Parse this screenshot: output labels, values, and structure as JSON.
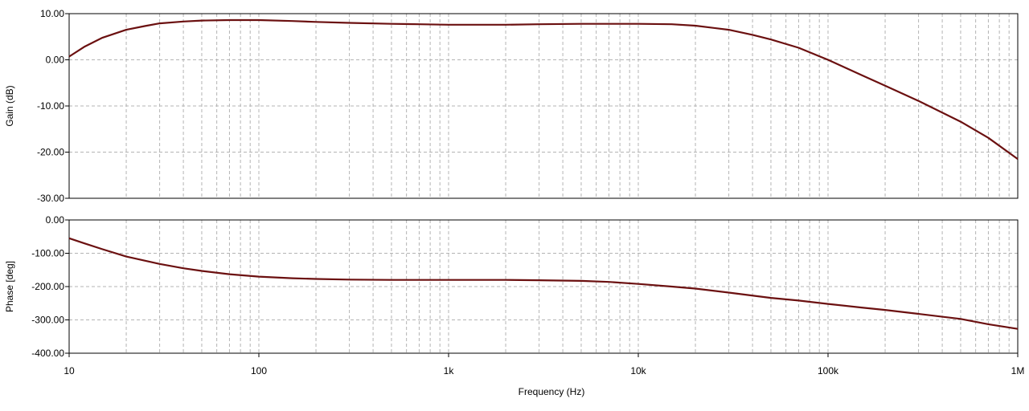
{
  "chart_data": [
    {
      "type": "line",
      "name": "gain-plot",
      "xscale": "log",
      "xlim": [
        10,
        1000000
      ],
      "ylim": [
        -30,
        10
      ],
      "ylabel": "Gain (dB)",
      "xlabel": "",
      "grid": true,
      "yticks": [
        {
          "value": 10,
          "label": "10.00"
        },
        {
          "value": 0,
          "label": "0.00"
        },
        {
          "value": -10,
          "label": "-10.00"
        },
        {
          "value": -20,
          "label": "-20.00"
        },
        {
          "value": -30,
          "label": "-30.00"
        }
      ],
      "series": [
        {
          "color": "#6b1010",
          "x": [
            10,
            12,
            15,
            20,
            25,
            30,
            40,
            50,
            70,
            100,
            150,
            200,
            300,
            500,
            700,
            1000,
            2000,
            3000,
            5000,
            7000,
            10000,
            15000,
            20000,
            30000,
            40000,
            50000,
            70000,
            100000,
            150000,
            200000,
            300000,
            500000,
            700000,
            1000000
          ],
          "y": [
            0.7,
            2.8,
            4.8,
            6.5,
            7.3,
            7.9,
            8.3,
            8.5,
            8.6,
            8.6,
            8.4,
            8.2,
            8.0,
            7.8,
            7.7,
            7.6,
            7.6,
            7.7,
            7.8,
            7.8,
            7.8,
            7.7,
            7.4,
            6.5,
            5.4,
            4.4,
            2.6,
            0.0,
            -3.3,
            -5.6,
            -8.9,
            -13.4,
            -16.9,
            -21.5
          ]
        }
      ]
    },
    {
      "type": "line",
      "name": "phase-plot",
      "xscale": "log",
      "xlim": [
        10,
        1000000
      ],
      "ylim": [
        -400,
        0
      ],
      "ylabel": "Phase [deg]",
      "xlabel": "Frequency (Hz)",
      "grid": true,
      "yticks": [
        {
          "value": 0,
          "label": "0.00"
        },
        {
          "value": -100,
          "label": "-100.00"
        },
        {
          "value": -200,
          "label": "-200.00"
        },
        {
          "value": -300,
          "label": "-300.00"
        },
        {
          "value": -400,
          "label": "-400.00"
        }
      ],
      "xticks": [
        {
          "value": 10,
          "label": "10"
        },
        {
          "value": 100,
          "label": "100"
        },
        {
          "value": 1000,
          "label": "1k"
        },
        {
          "value": 10000,
          "label": "10k"
        },
        {
          "value": 100000,
          "label": "100k"
        },
        {
          "value": 1000000,
          "label": "1M"
        }
      ],
      "series": [
        {
          "color": "#6b1010",
          "x": [
            10,
            12,
            15,
            20,
            30,
            40,
            50,
            70,
            100,
            150,
            200,
            300,
            500,
            1000,
            2000,
            3000,
            5000,
            7000,
            10000,
            15000,
            20000,
            30000,
            50000,
            70000,
            100000,
            150000,
            200000,
            300000,
            500000,
            700000,
            1000000
          ],
          "y": [
            -55,
            -70,
            -88,
            -110,
            -132,
            -145,
            -153,
            -163,
            -170,
            -175,
            -177,
            -179,
            -180,
            -180,
            -180,
            -181,
            -183,
            -186,
            -192,
            -200,
            -206,
            -218,
            -234,
            -242,
            -252,
            -263,
            -270,
            -282,
            -297,
            -313,
            -327
          ]
        }
      ]
    }
  ]
}
